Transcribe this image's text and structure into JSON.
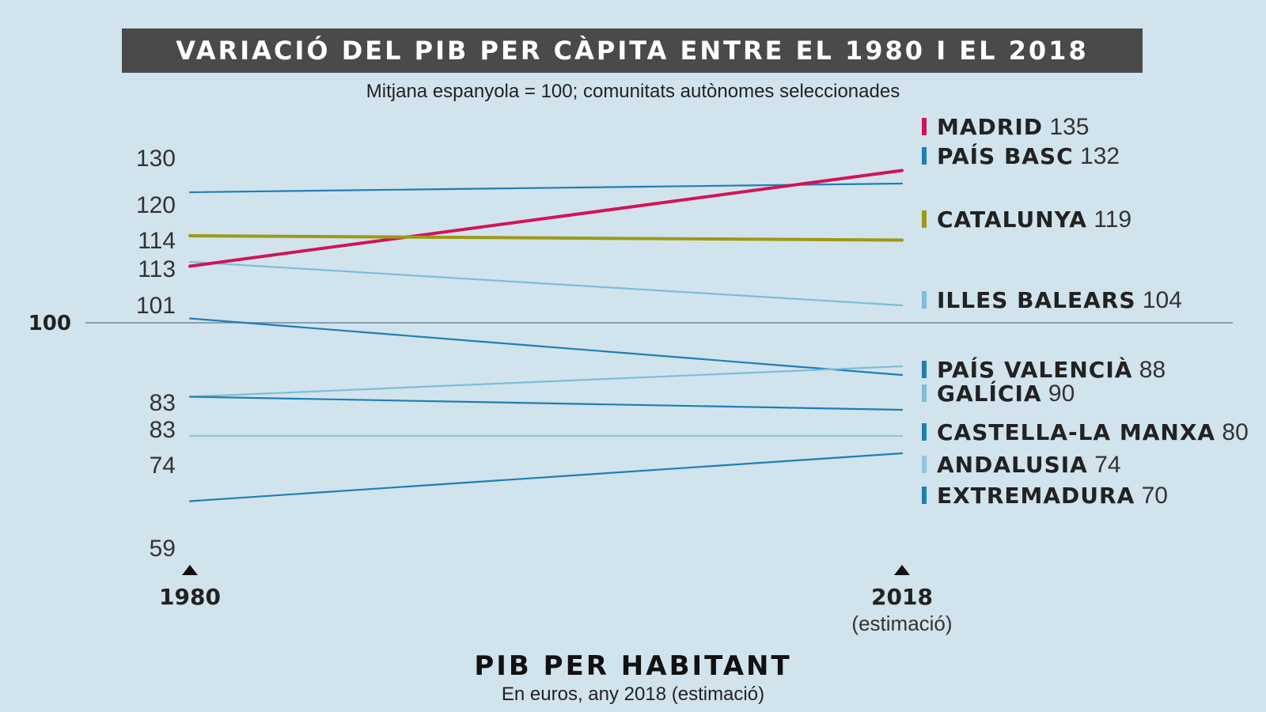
{
  "header": {
    "title": "VARIACIÓ DEL PIB PER CÀPITA ENTRE EL 1980 I EL 2018",
    "subtitle": "Mitjana espanyola = 100; comunitats autònomes seleccionades"
  },
  "chart_data": {
    "type": "line",
    "x": [
      "1980",
      "2018"
    ],
    "x_labels": [
      "1980",
      "2018"
    ],
    "x_note_2018": "(estimació)",
    "reference": {
      "value": 100,
      "label": "100"
    },
    "ylim": [
      55,
      140
    ],
    "series": [
      {
        "name": "MADRID",
        "values": [
          113,
          135
        ],
        "color": "#d0145a",
        "emphasis": true
      },
      {
        "name": "PAÍS BASC",
        "values": [
          130,
          132
        ],
        "color": "#1f7fb2",
        "emphasis": false
      },
      {
        "name": "CATALUNYA",
        "values": [
          120,
          119
        ],
        "color": "#9c9a14",
        "emphasis": true
      },
      {
        "name": "ILLES BALEARS",
        "values": [
          114,
          104
        ],
        "color": "#7fbcd8",
        "emphasis": false
      },
      {
        "name": "PAÍS VALENCIÀ",
        "values": [
          101,
          88
        ],
        "color": "#1f7fb2",
        "emphasis": false
      },
      {
        "name": "GALÍCIA",
        "values": [
          83,
          90
        ],
        "color": "#7fbcd8",
        "emphasis": false
      },
      {
        "name": "CASTELLA-LA MANXA",
        "values": [
          83,
          80
        ],
        "color": "#1f7fb2",
        "emphasis": false
      },
      {
        "name": "ANDALUSIA",
        "values": [
          74,
          74
        ],
        "color": "#8fc6df",
        "emphasis": false
      },
      {
        "name": "EXTREMADURA",
        "values": [
          59,
          70
        ],
        "color": "#1f7fb2",
        "emphasis": false
      }
    ],
    "start_labels": [
      "130",
      "120",
      "114",
      "113",
      "101",
      "83",
      "83",
      "74",
      "59"
    ]
  },
  "section": {
    "title": "PIB PER HABITANT",
    "subtitle": "En euros, any 2018 (estimació)"
  }
}
